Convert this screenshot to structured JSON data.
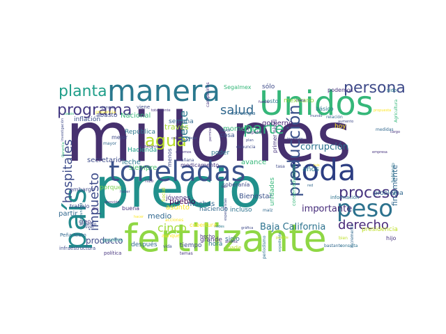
{
  "words": [
    {
      "text": "millones",
      "color": "#46306e"
    },
    {
      "text": "precio",
      "color": "#21908c"
    },
    {
      "text": "fertilizante",
      "color": "#8fd744"
    },
    {
      "text": "toneladas",
      "color": "#3b528b"
    },
    {
      "text": "toda",
      "color": "#2c3d82"
    },
    {
      "text": "Unidos",
      "color": "#35b779"
    },
    {
      "text": "manera",
      "color": "#2a788e"
    },
    {
      "text": "país",
      "color": "#238a8d"
    },
    {
      "text": "peso",
      "color": "#2c728e"
    },
    {
      "text": "persona",
      "color": "#3e4a89"
    },
    {
      "text": "proceso",
      "color": "#46337e"
    },
    {
      "text": "programa",
      "color": "#443a83"
    },
    {
      "text": "planta",
      "color": "#1f9e89"
    },
    {
      "text": "parte",
      "color": "#2fb47c"
    },
    {
      "text": "derecho",
      "color": "#482878"
    },
    {
      "text": "agua",
      "color": "#b8de29"
    },
    {
      "text": "salud",
      "color": "#31688e"
    },
    {
      "text": "producción",
      "color": "#3b528b"
    },
    {
      "text": "impuesto",
      "color": "#3e4c8a"
    },
    {
      "text": "hospitales",
      "color": "#3e4c8a"
    },
    {
      "text": "cinco",
      "color": "#a0da39"
    },
    {
      "text": "gente",
      "color": "#2a788e"
    },
    {
      "text": "Baja California",
      "color": "#2c728e"
    },
    {
      "text": "corrupción",
      "color": "#2c728e"
    },
    {
      "text": "importante",
      "color": "#472c7a"
    },
    {
      "text": "momento",
      "color": "#35b779"
    },
    {
      "text": "gobierno",
      "color": "#482475"
    },
    {
      "text": "inflación",
      "color": "#3b528b"
    },
    {
      "text": "República",
      "color": "#2a788e"
    },
    {
      "text": "Hacienda",
      "color": "#1f9e89"
    },
    {
      "text": "Nacional",
      "color": "#35b779"
    },
    {
      "text": "semana",
      "color": "#31688e"
    },
    {
      "text": "través",
      "color": "#a8db34"
    },
    {
      "text": "abasto",
      "color": "#3e4a89"
    },
    {
      "text": "siempre",
      "color": "#4ac16d"
    },
    {
      "text": "leche",
      "color": "#2a788e"
    },
    {
      "text": "secretario",
      "color": "#3e4c8a"
    },
    {
      "text": "muchas",
      "color": "#31688e"
    },
    {
      "text": "avance",
      "color": "#35b779"
    },
    {
      "text": "años",
      "color": "#2a788e"
    },
    {
      "text": "pueblo",
      "color": "#440154"
    },
    {
      "text": "Bienestar",
      "color": "#3b528b"
    },
    {
      "text": "medio",
      "color": "#31688e"
    },
    {
      "text": "jóvenes",
      "color": "#46337e"
    },
    {
      "text": "asunto",
      "color": "#fde725"
    },
    {
      "text": "haciendo",
      "color": "#31688e"
    },
    {
      "text": "incluso",
      "color": "#2c728e"
    },
    {
      "text": "producto",
      "color": "#3e4a89"
    },
    {
      "text": "después",
      "color": "#31688e"
    },
    {
      "text": "hora",
      "color": "#2c728e"
    },
    {
      "text": "tiempo",
      "color": "#3e4a89"
    },
    {
      "text": "grande",
      "color": "#46337e"
    },
    {
      "text": "siglo",
      "color": "#31688e"
    },
    {
      "text": "mexicano",
      "color": "#8fd744"
    },
    {
      "text": "sólo",
      "color": "#3e4a89"
    },
    {
      "text": "podemos",
      "color": "#46337e"
    },
    {
      "text": "Segalmex",
      "color": "#35b779"
    },
    {
      "text": "básico",
      "color": "#2a788e"
    },
    {
      "text": "costo",
      "color": "#2a788e"
    },
    {
      "text": "cosa",
      "color": "#3b528b"
    },
    {
      "text": "poder",
      "color": "#2a788e"
    },
    {
      "text": "soberanía",
      "color": "#3e4a89"
    },
    {
      "text": "unidades",
      "color": "#35b779"
    },
    {
      "text": "finalmente",
      "color": "#31688e"
    },
    {
      "text": "problema",
      "color": "#31688e"
    },
    {
      "text": "trabajo",
      "color": "#3e4a89"
    },
    {
      "text": "embargo",
      "color": "#3e4a89"
    },
    {
      "text": "porque",
      "color": "#7ad151"
    },
    {
      "text": "partir",
      "color": "#31688e"
    },
    {
      "text": "creo",
      "color": "#46337e"
    },
    {
      "text": "acuerdo",
      "color": "#3e4a89"
    },
    {
      "text": "buena",
      "color": "#46337e"
    },
    {
      "text": "cobertura",
      "color": "#fde725"
    },
    {
      "text": "Peña Nieto",
      "color": "#31688e"
    },
    {
      "text": "gasolina",
      "color": "#21908c"
    },
    {
      "text": "infraestructura",
      "color": "#3e4a89"
    },
    {
      "text": "política",
      "color": "#46337e"
    },
    {
      "text": "vida",
      "color": "#3b528b"
    },
    {
      "text": "temas",
      "color": "#46337e"
    },
    {
      "text": "hecho",
      "color": "#46337e"
    },
    {
      "text": "nadie",
      "color": "#bddf26"
    },
    {
      "text": "hijo",
      "color": "#46337e"
    },
    {
      "text": "medicamento",
      "color": "#46337e"
    },
    {
      "text": "mañana",
      "color": "#3e4a89"
    },
    {
      "text": "menos",
      "color": "#3e4a89"
    },
    {
      "text": "mejor",
      "color": "#3e4a89"
    },
    {
      "text": "mayor",
      "color": "#31688e"
    },
    {
      "text": "primer nivel",
      "color": "#46337e"
    },
    {
      "text": "conservadurismo",
      "color": "#35b779"
    },
    {
      "text": "información",
      "color": "#2c728e"
    },
    {
      "text": "presidencia",
      "color": "#bddf26"
    },
    {
      "text": "hablando",
      "color": "#2c728e"
    },
    {
      "text": "Agricultura",
      "color": "#35b779"
    },
    {
      "text": "relación",
      "color": "#31688e"
    },
    {
      "text": "incremento",
      "color": "#31688e"
    },
    {
      "text": "denuncia",
      "color": "#3e4a89"
    },
    {
      "text": "respeto",
      "color": "#46337e"
    },
    {
      "text": "favor",
      "color": "#3b528b"
    },
    {
      "text": "estrategia",
      "color": "#31688e"
    },
    {
      "text": "viene",
      "color": "#3e4a89"
    },
    {
      "text": "sido",
      "color": "#2a788e"
    },
    {
      "text": "hoy",
      "color": "#fde725"
    },
    {
      "text": "hizo",
      "color": "#46337e"
    },
    {
      "text": "bastante",
      "color": "#31688e"
    },
    {
      "text": "consulta",
      "color": "#2c728e"
    },
    {
      "text": "medidas",
      "color": "#31688e"
    },
    {
      "text": "tasa",
      "color": "#3e4a89"
    },
    {
      "text": "Social",
      "color": "#bddf26"
    },
    {
      "text": "acciones",
      "color": "#fde725"
    },
    {
      "text": "redes",
      "color": "#2a788e"
    },
    {
      "text": "ahorita",
      "color": "#46337e"
    },
    {
      "text": "periodismo",
      "color": "#2c728e"
    },
    {
      "text": "expediente",
      "color": "#2c728e"
    },
    {
      "text": "gráfica",
      "color": "#3e4a89"
    },
    {
      "text": "maíz",
      "color": "#31688e"
    },
    {
      "text": "campesinos",
      "color": "#46337e"
    },
    {
      "text": "aumento",
      "color": "#3e4a89"
    },
    {
      "text": "meta",
      "color": "#46337e"
    },
    {
      "text": "fuerte",
      "color": "#46337e"
    },
    {
      "text": "caso",
      "color": "#3b528b"
    },
    {
      "text": "dejar",
      "color": "#3b528b"
    },
    {
      "text": "cargo",
      "color": "#46337e"
    },
    {
      "text": "presencia",
      "color": "#fde725"
    },
    {
      "text": "ejemplo",
      "color": "#3e4a89"
    },
    {
      "text": "casos",
      "color": "#35b779"
    },
    {
      "text": "Garantía",
      "color": "#35b779"
    },
    {
      "text": "investigación",
      "color": "#3e4a89"
    },
    {
      "text": "oportunidad",
      "color": "#2c728e"
    },
    {
      "text": "atención",
      "color": "#46337e"
    },
    {
      "text": "nivel",
      "color": "#3e4a89"
    },
    {
      "text": "posible",
      "color": "#bddf26"
    },
    {
      "text": "inversión",
      "color": "#3e4a89"
    },
    {
      "text": "permiso",
      "color": "#46337e"
    },
    {
      "text": "propuesta",
      "color": "#fde725"
    },
    {
      "text": "especialistas",
      "color": "#3e4a89"
    },
    {
      "text": "totalmente",
      "color": "#46337e"
    },
    {
      "text": "tan",
      "color": "#46337e"
    },
    {
      "text": "aunque",
      "color": "#fde725"
    },
    {
      "text": "dio",
      "color": "#46337e"
    },
    {
      "text": "haber",
      "color": "#3e4a89"
    },
    {
      "text": "plan",
      "color": "#3e4a89"
    },
    {
      "text": "sabemos",
      "color": "#46337e"
    },
    {
      "text": "bien",
      "color": "#bddf26"
    },
    {
      "text": "caben",
      "color": "#46337e"
    },
    {
      "text": "red",
      "color": "#31688e"
    },
    {
      "text": "ciudadanos",
      "color": "#46337e"
    },
    {
      "text": "mundo",
      "color": "#3b528b"
    },
    {
      "text": "hacer",
      "color": "#fde725"
    },
    {
      "text": "luis",
      "color": "#fde725"
    },
    {
      "text": "ir",
      "color": "#3e4a89"
    },
    {
      "text": "empresa",
      "color": "#46337e"
    }
  ]
}
